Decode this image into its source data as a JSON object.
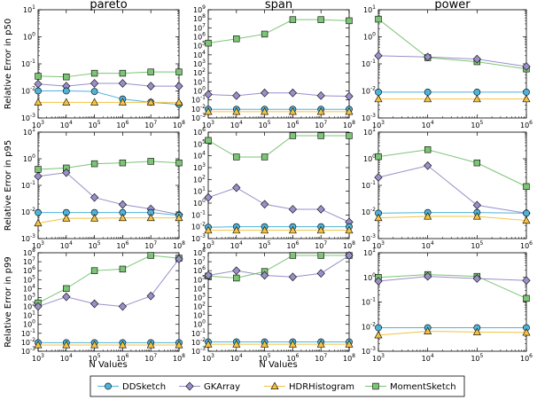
{
  "colors": {
    "DDSketch": "#4fb3d9",
    "GKArray": "#9a8fc9",
    "HDRHistogram": "#f5c242",
    "MomentSketch": "#7cc576"
  },
  "legend": [
    "DDSketch",
    "GKArray",
    "HDRHistogram",
    "MomentSketch"
  ],
  "xlabel": "N Values",
  "chart_data": [
    {
      "type": "line",
      "title": "pareto",
      "ylabel": "Relative Error in p50",
      "xlog": [
        3,
        8
      ],
      "ylog": [
        -3,
        1
      ],
      "x": [
        3,
        4,
        5,
        6,
        7,
        8
      ],
      "series": [
        {
          "name": "DDSketch",
          "values": [
            0.01,
            0.01,
            0.0095,
            0.005,
            0.0038,
            0.0032
          ]
        },
        {
          "name": "GKArray",
          "values": [
            0.018,
            0.015,
            0.019,
            0.019,
            0.015,
            0.015
          ]
        },
        {
          "name": "HDRHistogram",
          "values": [
            0.0038,
            0.0038,
            0.0038,
            0.0038,
            0.0038,
            0.0038
          ]
        },
        {
          "name": "MomentSketch",
          "values": [
            0.035,
            0.033,
            0.045,
            0.045,
            0.05,
            0.05
          ]
        }
      ]
    },
    {
      "type": "line",
      "title": "span",
      "ylabel": "",
      "xlog": [
        3,
        8
      ],
      "ylog": [
        -3,
        9
      ],
      "x": [
        3,
        4,
        5,
        6,
        7,
        8
      ],
      "series": [
        {
          "name": "DDSketch",
          "values": [
            0.009,
            0.009,
            0.009,
            0.009,
            0.009,
            0.009
          ]
        },
        {
          "name": "GKArray",
          "values": [
            0.4,
            0.3,
            0.6,
            0.6,
            0.3,
            0.25
          ]
        },
        {
          "name": "HDRHistogram",
          "values": [
            0.005,
            0.005,
            0.005,
            0.005,
            0.005,
            0.005
          ]
        },
        {
          "name": "MomentSketch",
          "values": [
            200000,
            600000,
            2000000,
            80000000,
            80000000,
            60000000
          ]
        }
      ]
    },
    {
      "type": "line",
      "title": "power",
      "ylabel": "",
      "xlog": [
        3,
        6
      ],
      "ylog": [
        -3,
        1
      ],
      "x": [
        3,
        4,
        5,
        6
      ],
      "series": [
        {
          "name": "DDSketch",
          "values": [
            0.009,
            0.009,
            0.009,
            0.009
          ]
        },
        {
          "name": "GKArray",
          "values": [
            0.2,
            0.18,
            0.15,
            0.08
          ]
        },
        {
          "name": "HDRHistogram",
          "values": [
            0.005,
            0.005,
            0.005,
            0.005
          ]
        },
        {
          "name": "MomentSketch",
          "values": [
            4.5,
            0.17,
            0.12,
            0.065
          ]
        }
      ]
    },
    {
      "type": "line",
      "title": "",
      "ylabel": "Relative Error in p95",
      "xlog": [
        3,
        8
      ],
      "ylog": [
        -3,
        1
      ],
      "x": [
        3,
        4,
        5,
        6,
        7,
        8
      ],
      "series": [
        {
          "name": "DDSketch",
          "values": [
            0.0095,
            0.0095,
            0.0095,
            0.0095,
            0.0095,
            0.0075
          ]
        },
        {
          "name": "GKArray",
          "values": [
            0.22,
            0.3,
            0.035,
            0.019,
            0.013,
            0.008
          ]
        },
        {
          "name": "HDRHistogram",
          "values": [
            0.0038,
            0.0058,
            0.0058,
            0.006,
            0.006,
            0.006
          ]
        },
        {
          "name": "MomentSketch",
          "values": [
            0.4,
            0.45,
            0.65,
            0.7,
            0.8,
            0.7
          ]
        }
      ]
    },
    {
      "type": "line",
      "title": "",
      "ylabel": "",
      "xlog": [
        3,
        8
      ],
      "ylog": [
        -3,
        6
      ],
      "x": [
        3,
        4,
        5,
        6,
        7,
        8
      ],
      "series": [
        {
          "name": "DDSketch",
          "values": [
            0.009,
            0.01,
            0.01,
            0.01,
            0.01,
            0.01
          ]
        },
        {
          "name": "GKArray",
          "values": [
            3,
            20,
            0.8,
            0.3,
            0.3,
            0.025
          ]
        },
        {
          "name": "HDRHistogram",
          "values": [
            0.005,
            0.005,
            0.005,
            0.005,
            0.005,
            0.005
          ]
        },
        {
          "name": "MomentSketch",
          "values": [
            200000,
            8000,
            8000,
            500000,
            500000,
            500000
          ]
        }
      ]
    },
    {
      "type": "line",
      "title": "",
      "ylabel": "",
      "xlog": [
        3,
        6
      ],
      "ylog": [
        -3,
        1
      ],
      "x": [
        3,
        4,
        5,
        6
      ],
      "series": [
        {
          "name": "DDSketch",
          "values": [
            0.009,
            0.0095,
            0.0095,
            0.009
          ]
        },
        {
          "name": "GKArray",
          "values": [
            0.2,
            0.55,
            0.018,
            0.009
          ]
        },
        {
          "name": "HDRHistogram",
          "values": [
            0.006,
            0.0068,
            0.0068,
            0.0048
          ]
        },
        {
          "name": "MomentSketch",
          "values": [
            1.2,
            2.2,
            0.7,
            0.09
          ]
        }
      ]
    },
    {
      "type": "line",
      "title": "",
      "ylabel": "Relative Error in p99",
      "xlog": [
        3,
        8
      ],
      "ylog": [
        -3,
        8
      ],
      "x": [
        3,
        4,
        5,
        6,
        7,
        8
      ],
      "series": [
        {
          "name": "DDSketch",
          "values": [
            0.009,
            0.009,
            0.009,
            0.009,
            0.009,
            0.009
          ]
        },
        {
          "name": "GKArray",
          "values": [
            100,
            1200,
            200,
            100,
            1500,
            20000000
          ]
        },
        {
          "name": "HDRHistogram",
          "values": [
            0.005,
            0.005,
            0.005,
            0.005,
            0.005,
            0.005
          ]
        },
        {
          "name": "MomentSketch",
          "values": [
            250,
            10000,
            1000000,
            1500000,
            50000000,
            25000000
          ]
        }
      ]
    },
    {
      "type": "line",
      "title": "",
      "ylabel": "",
      "xlog": [
        3,
        8
      ],
      "ylog": [
        -3,
        8
      ],
      "x": [
        3,
        4,
        5,
        6,
        7,
        8
      ],
      "series": [
        {
          "name": "DDSketch",
          "values": [
            0.011,
            0.011,
            0.011,
            0.011,
            0.011,
            0.011
          ]
        },
        {
          "name": "GKArray",
          "values": [
            300000,
            1000000,
            300000,
            200000,
            500000,
            50000000
          ]
        },
        {
          "name": "HDRHistogram",
          "values": [
            0.006,
            0.006,
            0.006,
            0.006,
            0.006,
            0.006
          ]
        },
        {
          "name": "MomentSketch",
          "values": [
            250000,
            150000,
            800000,
            50000000,
            50000000,
            50000000
          ]
        }
      ]
    },
    {
      "type": "line",
      "title": "",
      "ylabel": "",
      "xlog": [
        3,
        6
      ],
      "ylog": [
        -3,
        1
      ],
      "x": [
        3,
        4,
        5,
        6
      ],
      "series": [
        {
          "name": "DDSketch",
          "values": [
            0.009,
            0.009,
            0.009,
            0.009
          ]
        },
        {
          "name": "GKArray",
          "values": [
            0.7,
            1.1,
            0.9,
            0.75
          ]
        },
        {
          "name": "HDRHistogram",
          "values": [
            0.0045,
            0.0065,
            0.006,
            0.0058
          ]
        },
        {
          "name": "MomentSketch",
          "values": [
            1.0,
            1.3,
            1.1,
            0.14
          ]
        }
      ]
    }
  ]
}
